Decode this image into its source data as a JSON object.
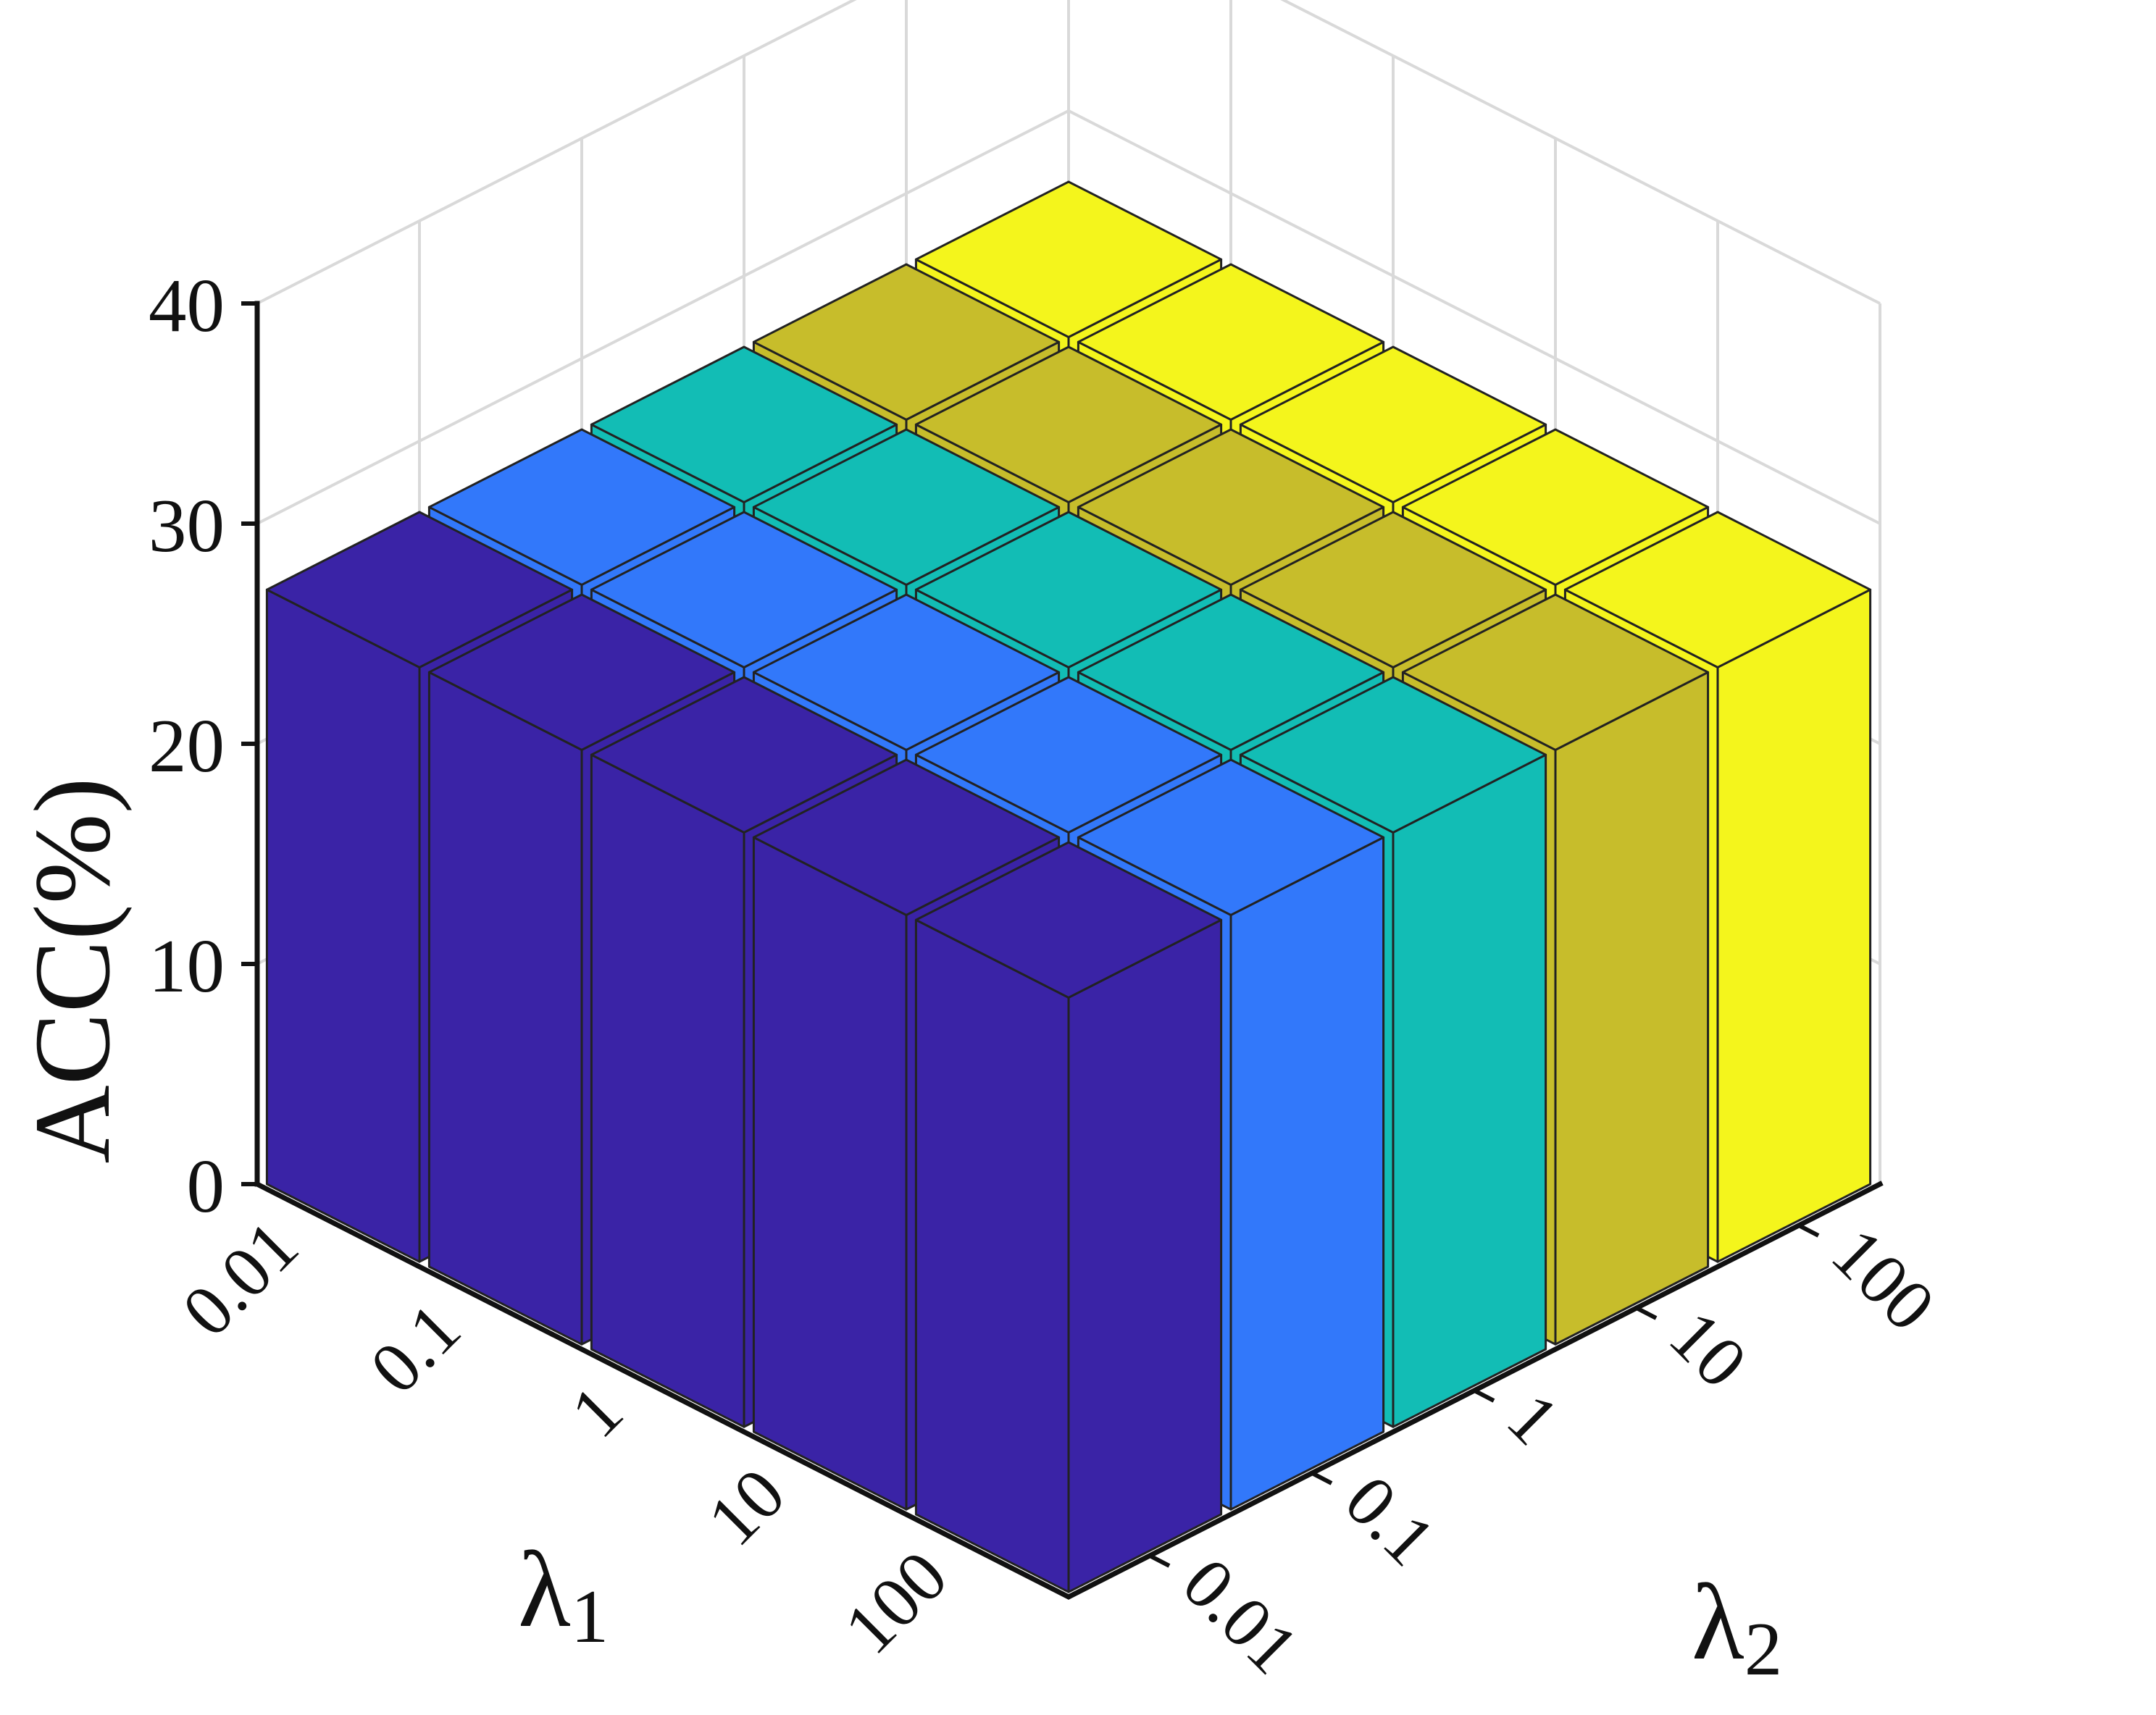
{
  "chart_data": {
    "type": "bar3d",
    "title": "",
    "zlabel": "ACC(%)",
    "xlabel_main": "λ",
    "xlabel_sub": "1",
    "ylabel_main": "λ",
    "ylabel_sub": "2",
    "zlim": [
      0,
      40
    ],
    "z_ticks": [
      "0",
      "10",
      "20",
      "30",
      "40"
    ],
    "lambda1_ticks": [
      "0.01",
      "0.1",
      "1",
      "10",
      "100"
    ],
    "lambda2_ticks": [
      "0.01",
      "0.1",
      "1",
      "10",
      "100"
    ],
    "grid": true,
    "series": [
      {
        "name": "",
        "color": "#3a23a6",
        "values": [
          27,
          27,
          27,
          27,
          27
        ]
      },
      {
        "name": "",
        "color": "#3278fa",
        "values": [
          27,
          27,
          27,
          27,
          27
        ]
      },
      {
        "name": "",
        "color": "#12bdb5",
        "values": [
          27,
          27,
          27,
          27,
          27
        ]
      },
      {
        "name": "",
        "color": "#c7bd2b",
        "values": [
          27,
          27,
          27,
          27,
          27
        ]
      },
      {
        "name": "",
        "color": "#f4f51c",
        "values": [
          27,
          27,
          27,
          27,
          27
        ]
      }
    ]
  }
}
